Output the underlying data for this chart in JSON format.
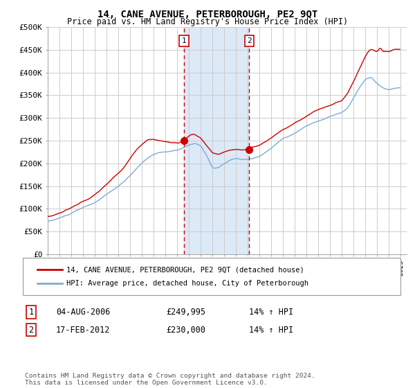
{
  "title": "14, CANE AVENUE, PETERBOROUGH, PE2 9QT",
  "subtitle": "Price paid vs. HM Land Registry's House Price Index (HPI)",
  "ylim": [
    0,
    500000
  ],
  "yticks": [
    0,
    50000,
    100000,
    150000,
    200000,
    250000,
    300000,
    350000,
    400000,
    450000,
    500000
  ],
  "ytick_labels": [
    "£0",
    "£50K",
    "£100K",
    "£150K",
    "£200K",
    "£250K",
    "£300K",
    "£350K",
    "£400K",
    "£450K",
    "£500K"
  ],
  "xlim_start": 1995.0,
  "xlim_end": 2025.5,
  "background_color": "#ffffff",
  "plot_bg_color": "#ffffff",
  "grid_color": "#cccccc",
  "sale1_date": 2006.58,
  "sale1_price": 249995,
  "sale1_label": "1",
  "sale1_date_str": "04-AUG-2006",
  "sale1_price_str": "£249,995",
  "sale1_hpi_str": "14% ↑ HPI",
  "sale2_date": 2012.12,
  "sale2_price": 230000,
  "sale2_label": "2",
  "sale2_date_str": "17-FEB-2012",
  "sale2_price_str": "£230,000",
  "sale2_hpi_str": "14% ↑ HPI",
  "shade_color": "#dce9f7",
  "dashed_color": "#cc0000",
  "hpi_line_color": "#7aadd4",
  "price_line_color": "#cc0000",
  "legend_label_price": "14, CANE AVENUE, PETERBOROUGH, PE2 9QT (detached house)",
  "legend_label_hpi": "HPI: Average price, detached house, City of Peterborough",
  "footnote": "Contains HM Land Registry data © Crown copyright and database right 2024.\nThis data is licensed under the Open Government Licence v3.0."
}
